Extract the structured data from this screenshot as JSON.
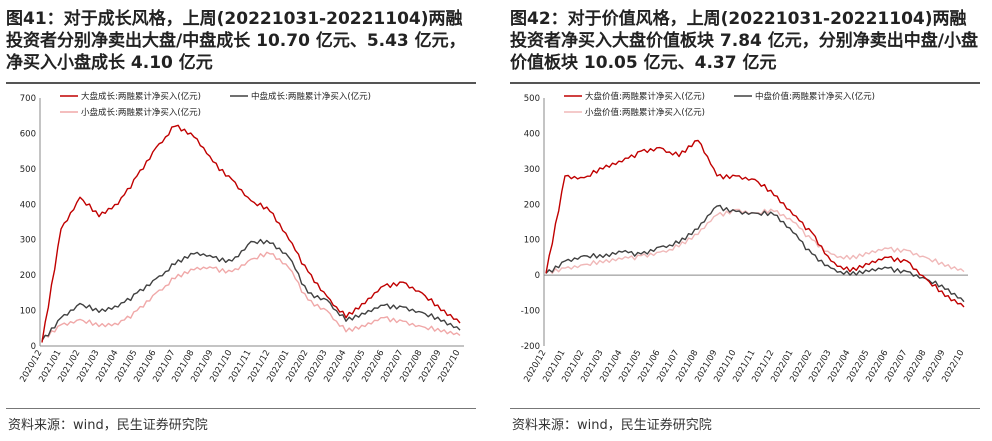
{
  "charts": [
    {
      "title": "图41：对于成长风格，上周(20221031-20221104)两融投资者分别净卖出大盘/中盘成长 10.70 亿元、5.43 亿元，净买入小盘成长 4.10 亿元",
      "source": "资料来源：wind，民生证券研究院"
    },
    {
      "title": "图42：对于价值风格，上周(20221031-20221104)两融投资者净买入大盘价值板块 7.84 亿元，分别净卖出中盘/小盘价值板块 10.05 亿元、4.37 亿元",
      "source": "资料来源：wind，民生证券研究院"
    }
  ],
  "chart_data": [
    {
      "type": "line",
      "ylim": [
        0,
        700
      ],
      "yticks": [
        0,
        100,
        200,
        300,
        400,
        500,
        600,
        700
      ],
      "x": [
        "2020/12",
        "2021/01",
        "2021/02",
        "2021/03",
        "2021/04",
        "2021/05",
        "2021/06",
        "2021/07",
        "2021/08",
        "2021/09",
        "2021/10",
        "2021/11",
        "2021/12",
        "2022/01",
        "2022/02",
        "2022/03",
        "2022/04",
        "2022/05",
        "2022/06",
        "2022/07",
        "2022/08",
        "2022/09",
        "2022/10"
      ],
      "series": [
        {
          "name": "大盘成长:两融累计净买入(亿元)",
          "color": "#c00000",
          "values": [
            10,
            330,
            420,
            365,
            400,
            480,
            560,
            620,
            590,
            520,
            470,
            410,
            380,
            300,
            210,
            140,
            80,
            120,
            170,
            180,
            150,
            100,
            65
          ]
        },
        {
          "name": "中盘成长:两融累计净买入(亿元)",
          "color": "#404040",
          "values": [
            15,
            80,
            120,
            95,
            110,
            150,
            190,
            230,
            260,
            250,
            240,
            295,
            290,
            250,
            150,
            130,
            70,
            90,
            115,
            110,
            95,
            70,
            45
          ]
        },
        {
          "name": "小盘成长:两融累计净买入(亿元)",
          "color": "#f0a8a8",
          "values": [
            20,
            60,
            75,
            55,
            60,
            100,
            150,
            190,
            215,
            220,
            210,
            245,
            260,
            220,
            130,
            100,
            40,
            55,
            80,
            70,
            55,
            40,
            30
          ]
        }
      ]
    },
    {
      "type": "line",
      "ylim": [
        -200,
        500
      ],
      "yticks": [
        -200,
        -100,
        0,
        100,
        200,
        300,
        400,
        500
      ],
      "x": [
        "2020/12",
        "2021/01",
        "2021/02",
        "2021/03",
        "2021/04",
        "2021/05",
        "2021/06",
        "2021/07",
        "2021/08",
        "2021/09",
        "2021/10",
        "2021/11",
        "2021/12",
        "2022/01",
        "2022/02",
        "2022/03",
        "2022/04",
        "2022/05",
        "2022/06",
        "2022/07",
        "2022/08",
        "2022/09",
        "2022/10"
      ],
      "series": [
        {
          "name": "大盘价值:两融累计净买入(亿元)",
          "color": "#c00000",
          "values": [
            5,
            280,
            275,
            300,
            320,
            350,
            360,
            335,
            380,
            280,
            280,
            270,
            225,
            170,
            120,
            40,
            10,
            30,
            50,
            40,
            -10,
            -60,
            -90
          ]
        },
        {
          "name": "中盘价值:两融累计净买入(亿元)",
          "color": "#404040",
          "values": [
            5,
            40,
            55,
            50,
            65,
            60,
            80,
            90,
            130,
            195,
            180,
            175,
            170,
            120,
            60,
            20,
            0,
            10,
            20,
            10,
            -10,
            -40,
            -75
          ]
        },
        {
          "name": "小盘价值:两融累计净买入(亿元)",
          "color": "#f0b8b8",
          "values": [
            10,
            20,
            30,
            35,
            45,
            55,
            65,
            80,
            115,
            170,
            185,
            175,
            180,
            150,
            100,
            60,
            45,
            60,
            75,
            70,
            50,
            25,
            10
          ]
        }
      ]
    }
  ]
}
